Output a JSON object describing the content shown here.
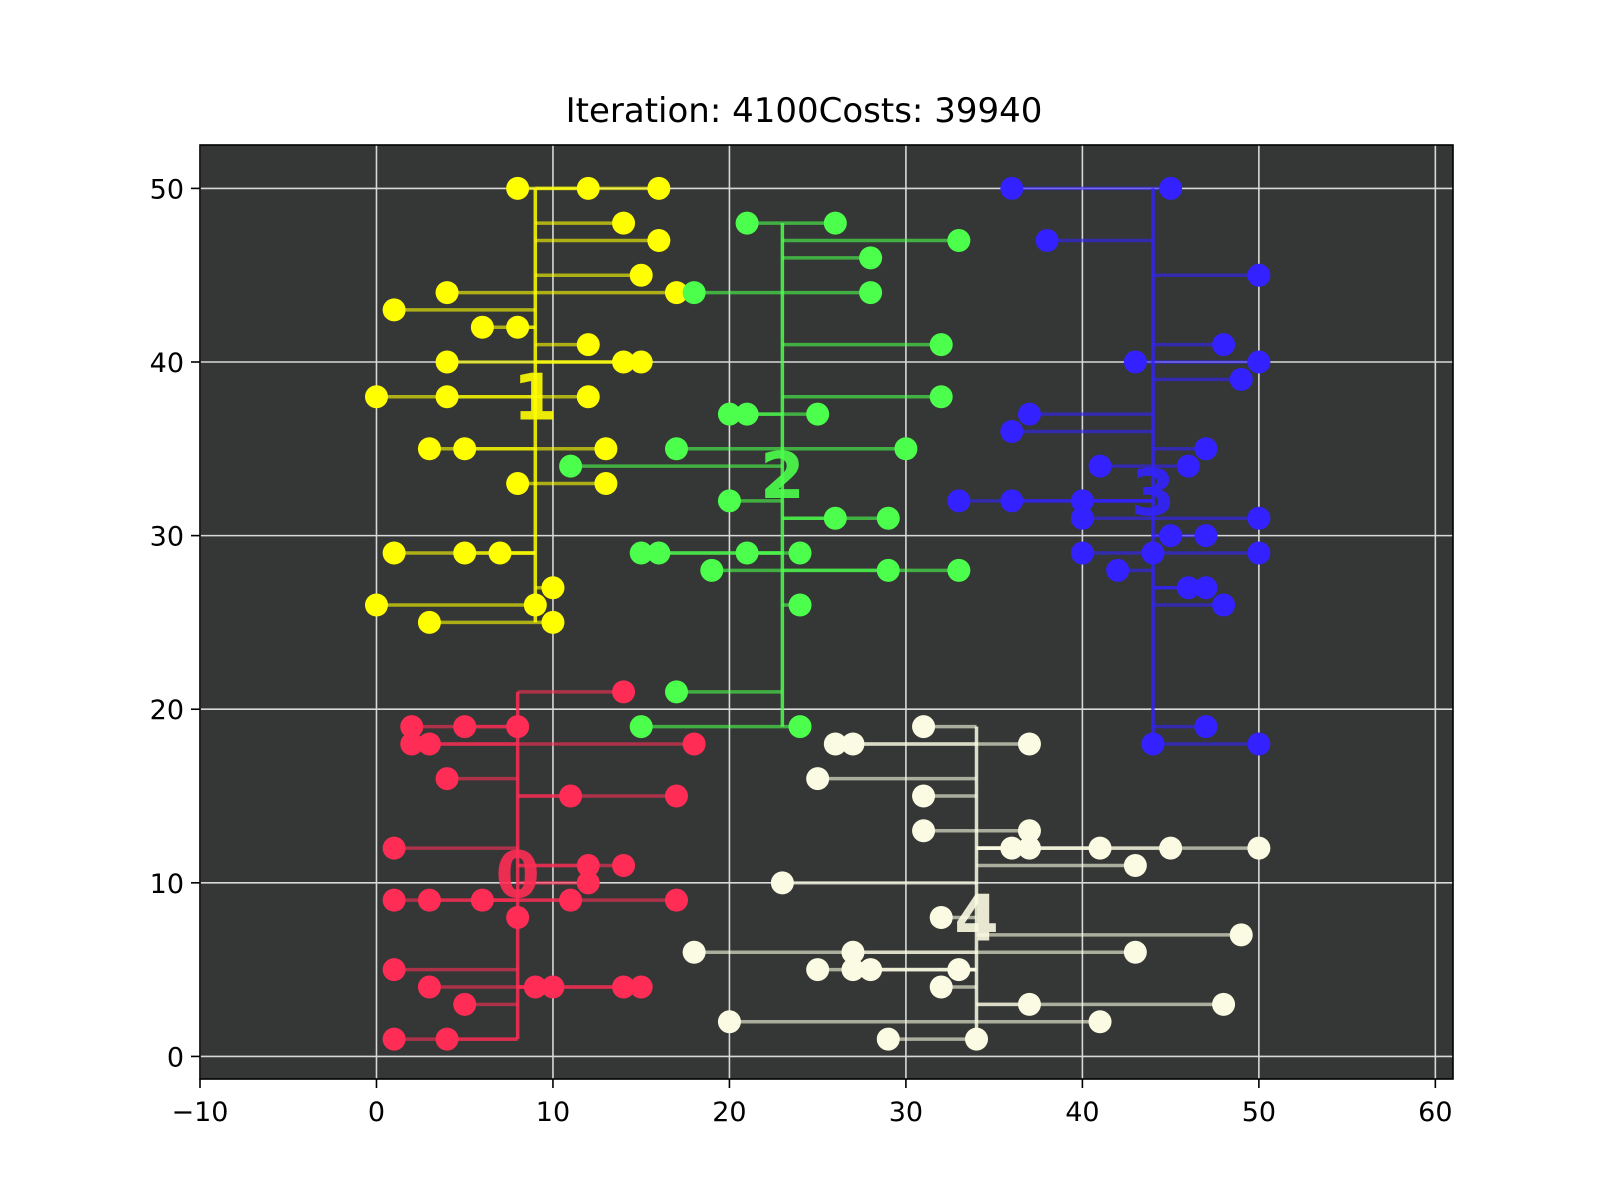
{
  "chart_data": {
    "type": "scatter",
    "title": "Iteration: 4100Costs: 39940",
    "xlabel": "",
    "ylabel": "",
    "xlim": [
      -10,
      61
    ],
    "ylim": [
      -1.3,
      52.5
    ],
    "x_ticks": [
      -10,
      0,
      10,
      20,
      30,
      40,
      50,
      60
    ],
    "y_ticks": [
      0,
      10,
      20,
      30,
      40,
      50
    ],
    "grid": true,
    "background": "#343736",
    "grid_color": "#d8d8d8",
    "clusters": [
      {
        "label": "0",
        "color": "#ff2d55",
        "spine_x": 8,
        "spine_y": [
          1,
          21
        ],
        "label_pos": [
          8,
          10.5
        ],
        "points": [
          [
            14,
            21
          ],
          [
            2,
            19
          ],
          [
            5,
            19
          ],
          [
            8,
            19
          ],
          [
            2,
            18
          ],
          [
            3,
            18
          ],
          [
            18,
            18
          ],
          [
            4,
            16
          ],
          [
            11,
            15
          ],
          [
            17,
            15
          ],
          [
            1,
            12
          ],
          [
            12,
            11
          ],
          [
            14,
            11
          ],
          [
            12,
            10
          ],
          [
            1,
            9
          ],
          [
            3,
            9
          ],
          [
            6,
            9
          ],
          [
            11,
            9
          ],
          [
            17,
            9
          ],
          [
            8,
            8
          ],
          [
            1,
            5
          ],
          [
            3,
            4
          ],
          [
            9,
            4
          ],
          [
            10,
            4
          ],
          [
            14,
            4
          ],
          [
            15,
            4
          ],
          [
            5,
            3
          ],
          [
            1,
            1
          ],
          [
            4,
            1
          ]
        ]
      },
      {
        "label": "1",
        "color": "#ffff00",
        "spine_x": 9,
        "spine_y": [
          25,
          50
        ],
        "label_pos": [
          9,
          38
        ],
        "points": [
          [
            8,
            50
          ],
          [
            12,
            50
          ],
          [
            16,
            50
          ],
          [
            14,
            48
          ],
          [
            16,
            47
          ],
          [
            15,
            45
          ],
          [
            4,
            44
          ],
          [
            17,
            44
          ],
          [
            1,
            43
          ],
          [
            6,
            42
          ],
          [
            8,
            42
          ],
          [
            12,
            41
          ],
          [
            4,
            40
          ],
          [
            14,
            40
          ],
          [
            15,
            40
          ],
          [
            0,
            38
          ],
          [
            4,
            38
          ],
          [
            12,
            38
          ],
          [
            3,
            35
          ],
          [
            5,
            35
          ],
          [
            13,
            35
          ],
          [
            8,
            33
          ],
          [
            13,
            33
          ],
          [
            1,
            29
          ],
          [
            5,
            29
          ],
          [
            7,
            29
          ],
          [
            10,
            27
          ],
          [
            0,
            26
          ],
          [
            9,
            26
          ],
          [
            3,
            25
          ],
          [
            10,
            25
          ]
        ]
      },
      {
        "label": "2",
        "color": "#4cff4c",
        "spine_x": 23,
        "spine_y": [
          19,
          48
        ],
        "label_pos": [
          23,
          33.5
        ],
        "points": [
          [
            21,
            48
          ],
          [
            26,
            48
          ],
          [
            33,
            47
          ],
          [
            28,
            46
          ],
          [
            18,
            44
          ],
          [
            28,
            44
          ],
          [
            32,
            41
          ],
          [
            32,
            38
          ],
          [
            20,
            37
          ],
          [
            21,
            37
          ],
          [
            25,
            37
          ],
          [
            17,
            35
          ],
          [
            30,
            35
          ],
          [
            11,
            34
          ],
          [
            20,
            32
          ],
          [
            26,
            31
          ],
          [
            29,
            31
          ],
          [
            15,
            29
          ],
          [
            16,
            29
          ],
          [
            21,
            29
          ],
          [
            24,
            29
          ],
          [
            19,
            28
          ],
          [
            29,
            28
          ],
          [
            33,
            28
          ],
          [
            24,
            26
          ],
          [
            17,
            21
          ],
          [
            15,
            19
          ],
          [
            24,
            19
          ]
        ]
      },
      {
        "label": "3",
        "color": "#3322ff",
        "spine_x": 44,
        "spine_y": [
          18,
          50
        ],
        "label_pos": [
          44,
          32.5
        ],
        "points": [
          [
            36,
            50
          ],
          [
            45,
            50
          ],
          [
            38,
            47
          ],
          [
            50,
            45
          ],
          [
            48,
            41
          ],
          [
            43,
            40
          ],
          [
            50,
            40
          ],
          [
            49,
            39
          ],
          [
            37,
            37
          ],
          [
            36,
            36
          ],
          [
            47,
            35
          ],
          [
            41,
            34
          ],
          [
            46,
            34
          ],
          [
            33,
            32
          ],
          [
            36,
            32
          ],
          [
            40,
            32
          ],
          [
            40,
            31
          ],
          [
            50,
            31
          ],
          [
            45,
            30
          ],
          [
            47,
            30
          ],
          [
            40,
            29
          ],
          [
            44,
            29
          ],
          [
            50,
            29
          ],
          [
            42,
            28
          ],
          [
            46,
            27
          ],
          [
            47,
            27
          ],
          [
            48,
            26
          ],
          [
            47,
            19
          ],
          [
            44,
            18
          ],
          [
            50,
            18
          ]
        ]
      },
      {
        "label": "4",
        "color": "#fbfbe3",
        "spine_x": 34,
        "spine_y": [
          1,
          19
        ],
        "label_pos": [
          34,
          8
        ],
        "points": [
          [
            31,
            19
          ],
          [
            26,
            18
          ],
          [
            27,
            18
          ],
          [
            37,
            18
          ],
          [
            25,
            16
          ],
          [
            31,
            15
          ],
          [
            31,
            13
          ],
          [
            37,
            13
          ],
          [
            36,
            12
          ],
          [
            37,
            12
          ],
          [
            41,
            12
          ],
          [
            45,
            12
          ],
          [
            50,
            12
          ],
          [
            43,
            11
          ],
          [
            23,
            10
          ],
          [
            32,
            8
          ],
          [
            49,
            7
          ],
          [
            18,
            6
          ],
          [
            27,
            6
          ],
          [
            43,
            6
          ],
          [
            25,
            5
          ],
          [
            27,
            5
          ],
          [
            28,
            5
          ],
          [
            33,
            5
          ],
          [
            32,
            4
          ],
          [
            37,
            3
          ],
          [
            48,
            3
          ],
          [
            20,
            2
          ],
          [
            41,
            2
          ],
          [
            29,
            1
          ],
          [
            34,
            1
          ]
        ]
      }
    ]
  }
}
